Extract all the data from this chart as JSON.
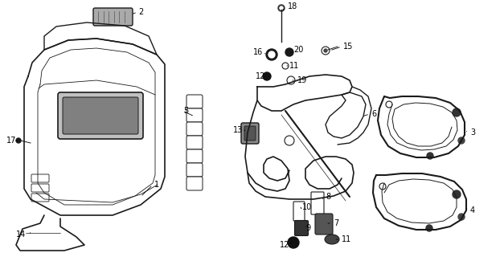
{
  "bg_color": "#ffffff",
  "line_color": "#1a1a1a",
  "label_color": "#000000",
  "fig_width": 6.27,
  "fig_height": 3.2,
  "dpi": 100
}
